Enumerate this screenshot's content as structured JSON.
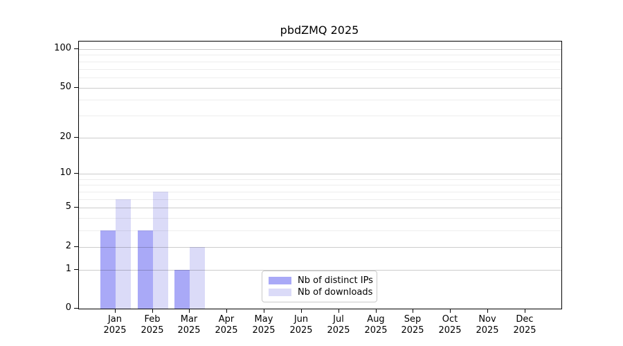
{
  "title": "pbdZMQ 2025",
  "chart_data": {
    "type": "bar",
    "title": "pbdZMQ 2025",
    "categories": [
      "Jan",
      "Feb",
      "Mar",
      "Apr",
      "May",
      "Jun",
      "Jul",
      "Aug",
      "Sep",
      "Oct",
      "Nov",
      "Dec"
    ],
    "year_label": "2025",
    "series": [
      {
        "name": "Nb of distinct IPs",
        "color": "#a9a9f7",
        "values": [
          3,
          3,
          1,
          0,
          0,
          0,
          0,
          0,
          0,
          0,
          0,
          0
        ]
      },
      {
        "name": "Nb of downloads",
        "color": "#dbdbf8",
        "values": [
          6,
          7,
          2,
          0,
          0,
          0,
          0,
          0,
          0,
          0,
          0,
          0
        ]
      }
    ],
    "xlabel": "",
    "ylabel": "",
    "ylim": [
      0,
      100
    ],
    "scale": "log1p",
    "y_major_ticks": [
      0,
      1,
      2,
      5,
      10,
      20,
      50,
      100
    ],
    "y_minor_ticks": [
      3,
      4,
      6,
      7,
      8,
      9,
      30,
      40,
      60,
      70,
      80,
      90
    ],
    "grid": true,
    "legend_position": "bottom-center"
  },
  "colors": {
    "bar_dark": "#a9a9f7",
    "bar_light": "#dbdbf8",
    "grid_major": "#cccccc",
    "grid_minor": "#ececec",
    "axis": "#000000",
    "text": "#000000",
    "legend_border": "#c9c9c9",
    "background": "#ffffff"
  }
}
